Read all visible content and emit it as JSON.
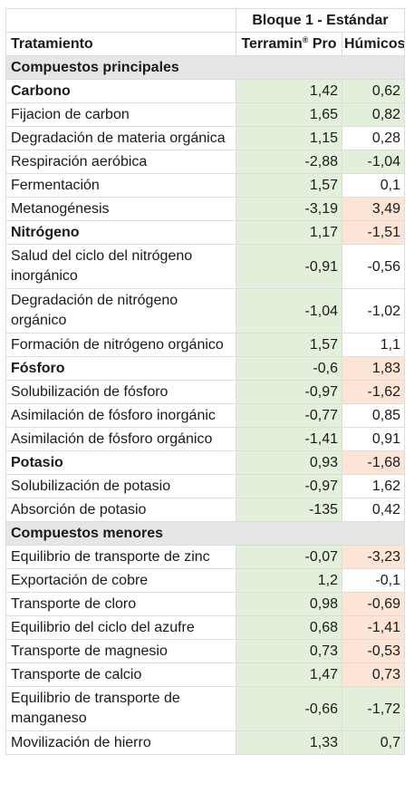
{
  "header": {
    "block_title": "Bloque 1 - Estándar",
    "treatment_label": "Tratamiento",
    "col1_name": "Terramin",
    "col1_sup": "®",
    "col1_suffix": " Pro",
    "col2_name": "Húmicos"
  },
  "sections": [
    {
      "title": "Compuestos principales",
      "rows": [
        {
          "label": "Carbono",
          "bold": true,
          "v1": "1,42",
          "v2": "0,62",
          "c1": "#e2efda",
          "c2": "#e2efda"
        },
        {
          "label": "Fijacion de carbon",
          "v1": "1,65",
          "v2": "0,82",
          "c1": "#e2efda",
          "c2": "#e2efda"
        },
        {
          "label": "Degradación de materia orgánica",
          "v1": "1,15",
          "v2": "0,28",
          "c1": "#e2efda",
          "c2": "#ffffff"
        },
        {
          "label": "Respiración aeróbica",
          "v1": "-2,88",
          "v2": "-1,04",
          "c1": "#e2efda",
          "c2": "#e2efda"
        },
        {
          "label": "Fermentación",
          "v1": "1,57",
          "v2": "0,1",
          "c1": "#e2efda",
          "c2": "#ffffff"
        },
        {
          "label": "Metanogénesis",
          "v1": "-3,19",
          "v2": "3,49",
          "c1": "#e2efda",
          "c2": "#fce4d6"
        },
        {
          "label": "Nitrógeno",
          "bold": true,
          "v1": "1,17",
          "v2": "-1,51",
          "c1": "#e2efda",
          "c2": "#fce4d6"
        },
        {
          "label": "Salud del ciclo del nitrógeno inorgánico",
          "tall": true,
          "v1": "-0,91",
          "v2": "-0,56",
          "c1": "#e2efda",
          "c2": "#ffffff"
        },
        {
          "label": "Degradación de nitrógeno orgánico",
          "tall": true,
          "v1": "-1,04",
          "v2": "-1,02",
          "c1": "#e2efda",
          "c2": "#ffffff"
        },
        {
          "label": "Formación de nitrógeno orgánico",
          "v1": "1,57",
          "v2": "1,1",
          "c1": "#e2efda",
          "c2": "#ffffff"
        },
        {
          "label": "Fósforo",
          "bold": true,
          "v1": "-0,6",
          "v2": "1,83",
          "c1": "#e2efda",
          "c2": "#fce4d6"
        },
        {
          "label": "Solubilización de fósforo",
          "v1": "-0,97",
          "v2": "-1,62",
          "c1": "#e2efda",
          "c2": "#fce4d6"
        },
        {
          "label": "Asimilación de fósforo inorgánic",
          "v1": "-0,77",
          "v2": "0,85",
          "c1": "#e2efda",
          "c2": "#ffffff"
        },
        {
          "label": "Asimilación de fósforo orgánico",
          "v1": "-1,41",
          "v2": "0,91",
          "c1": "#e2efda",
          "c2": "#ffffff"
        },
        {
          "label": "Potasio",
          "bold": true,
          "v1": "0,93",
          "v2": "-1,68",
          "c1": "#e2efda",
          "c2": "#fce4d6"
        },
        {
          "label": "Solubilización de potasio",
          "v1": "-0,97",
          "v2": "1,62",
          "c1": "#e2efda",
          "c2": "#ffffff"
        },
        {
          "label": "Absorción de potasio",
          "v1": "-135",
          "v2": "0,42",
          "c1": "#e2efda",
          "c2": "#ffffff"
        }
      ]
    },
    {
      "title": "Compuestos menores",
      "rows": [
        {
          "label": "Equilibrio de transporte de zinc",
          "v1": "-0,07",
          "v2": "-3,23",
          "c1": "#e2efda",
          "c2": "#fce4d6"
        },
        {
          "label": "Exportación de cobre",
          "v1": "1,2",
          "v2": "-0,1",
          "c1": "#e2efda",
          "c2": "#ffffff"
        },
        {
          "label": "Transporte de cloro",
          "v1": "0,98",
          "v2": "-0,69",
          "c1": "#e2efda",
          "c2": "#fce4d6"
        },
        {
          "label": "Equilibrio del ciclo del azufre",
          "v1": "0,68",
          "v2": "-1,41",
          "c1": "#e2efda",
          "c2": "#fce4d6"
        },
        {
          "label": "Transporte de magnesio",
          "v1": "0,73",
          "v2": "-0,53",
          "c1": "#e2efda",
          "c2": "#fce4d6"
        },
        {
          "label": "Transporte de calcio",
          "v1": "1,47",
          "v2": "0,73",
          "c1": "#e2efda",
          "c2": "#fce4d6"
        },
        {
          "label": "Equilibrio de transporte de manganeso",
          "tall": true,
          "v1": "-0,66",
          "v2": "-1,72",
          "c1": "#e2efda",
          "c2": "#e2efda"
        },
        {
          "label": "Movilización de hierro",
          "v1": "1,33",
          "v2": "0,7",
          "c1": "#e2efda",
          "c2": "#e2efda"
        }
      ]
    }
  ]
}
